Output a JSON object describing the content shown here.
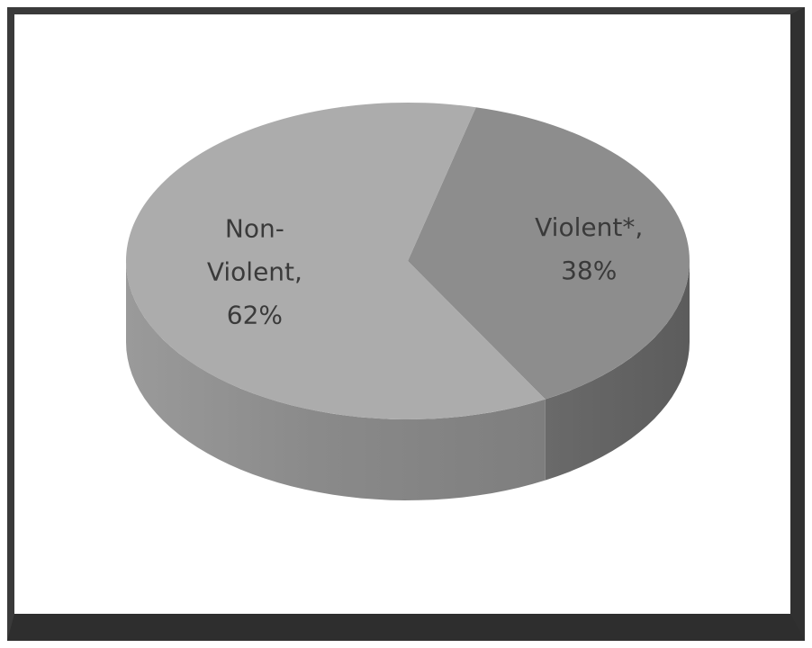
{
  "chart_data": {
    "type": "pie",
    "slices": [
      {
        "label_lines": [
          "Violent*,",
          "38%"
        ],
        "value": 38,
        "color": "#8d8d8d"
      },
      {
        "label_lines": [
          "Non-",
          "Violent,",
          "62%"
        ],
        "value": 62,
        "color": "#acacac"
      }
    ],
    "label_color": "#3a3a3a"
  }
}
